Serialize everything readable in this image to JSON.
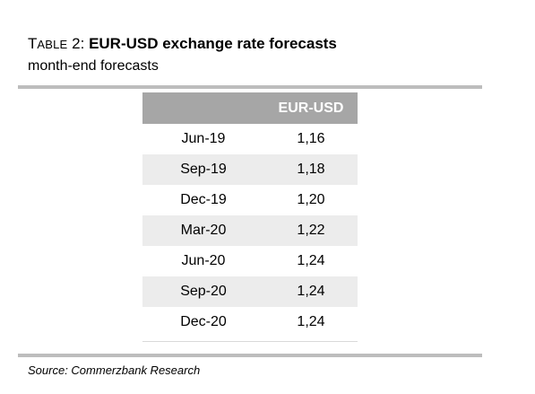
{
  "title": {
    "prefix_big": "T",
    "prefix_small": "ABLE",
    "number": " 2: ",
    "text": "EUR-USD exchange rate forecasts"
  },
  "subtitle": "month-end forecasts",
  "table": {
    "header": [
      "",
      "EUR-USD"
    ],
    "rows": [
      [
        "Jun-19",
        "1,16"
      ],
      [
        "Sep-19",
        "1,18"
      ],
      [
        "Dec-19",
        "1,20"
      ],
      [
        "Mar-20",
        "1,22"
      ],
      [
        "Jun-20",
        "1,24"
      ],
      [
        "Sep-20",
        "1,24"
      ],
      [
        "Dec-20",
        "1,24"
      ]
    ]
  },
  "source": "Source: Commerzbank Research",
  "colors": {
    "header_bg": "#a6a6a6",
    "stripe_bg": "#ececec",
    "rule": "#bdbdbd"
  }
}
